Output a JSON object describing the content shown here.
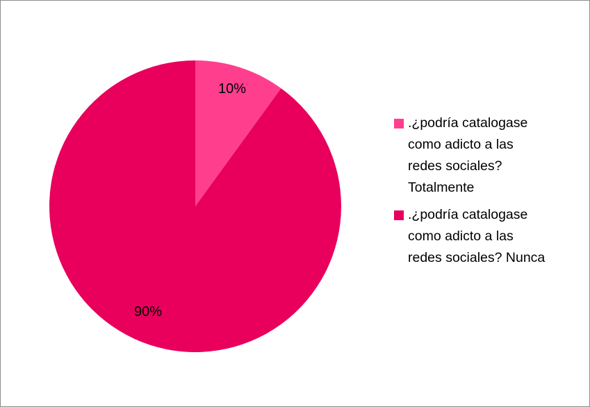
{
  "chart_data": {
    "type": "pie",
    "title": "",
    "slices": [
      {
        "label": ".¿podría catalogase como adicto a las redes sociales? Totalmente",
        "label_lines": ".¿podría catalogase\ncomo adicto a las\nredes sociales?\nTotalmente",
        "value": 10,
        "value_label": "10%",
        "color": "#ff3f8e"
      },
      {
        "label": ".¿podría catalogase como adicto a las redes sociales?  Nunca",
        "label_lines": ".¿podría catalogase\ncomo adicto a las\nredes sociales?  Nunca",
        "value": 90,
        "value_label": "90%",
        "color": "#e8005c"
      }
    ],
    "start_angle_deg": 0,
    "direction": "clockwise",
    "legend_position": "right"
  }
}
